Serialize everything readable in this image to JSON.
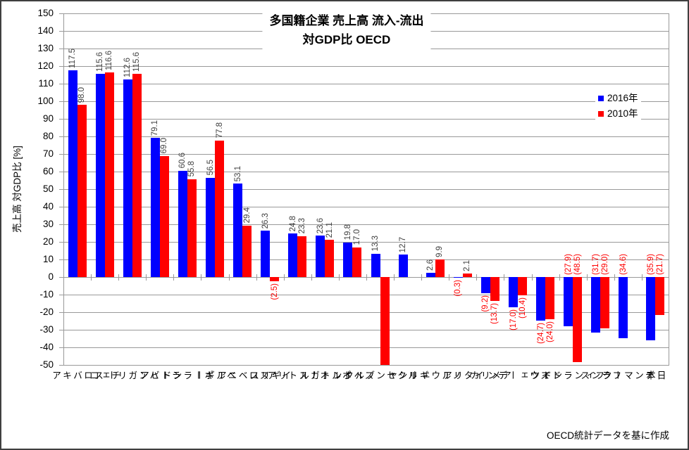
{
  "title": {
    "line1": "多国籍企業 売上高 流入-流出",
    "line2": "対GDP比 OECD"
  },
  "legend": {
    "items": [
      {
        "label": "2016年",
        "color": "#0000ff"
      },
      {
        "label": "2010年",
        "color": "#ff0000"
      }
    ]
  },
  "footer": {
    "source": "OECD統計データを基に作成"
  },
  "chart_data": {
    "type": "bar",
    "title": "多国籍企業 売上高 流入-流出 対GDP比 OECD",
    "xlabel": "",
    "ylabel": "売上高 対GDP比 [%]",
    "ylim": [
      -50,
      150
    ],
    "ytick_step": 10,
    "grid": true,
    "legend_position": "right",
    "categories": [
      "スロバキア",
      "チェコ",
      "ハンガリー",
      "ラトビア",
      "ポーランド",
      "ベルギー",
      "スロベニア",
      "イギリス",
      "オーストリア",
      "ポルトガル",
      "スペイン",
      "ルクセンブルク",
      "ギリシャ",
      "ノルウェー",
      "イタリア",
      "アメリカ",
      "スウェーデン",
      "ドイツ",
      "フィンランド",
      "フランス",
      "デンマーク",
      "日本"
    ],
    "series": [
      {
        "name": "2016年",
        "color": "#0000ff",
        "values": [
          117.5,
          115.6,
          112.6,
          79.1,
          60.6,
          56.5,
          53.1,
          26.3,
          24.8,
          23.6,
          19.8,
          13.3,
          12.7,
          2.6,
          -0.3,
          -9.2,
          -17.0,
          -24.7,
          -27.9,
          -31.7,
          -34.6,
          -35.9
        ]
      },
      {
        "name": "2010年",
        "color": "#ff0000",
        "values": [
          98.0,
          116.6,
          115.6,
          69.0,
          55.8,
          77.8,
          29.4,
          -2.5,
          23.3,
          21.1,
          17.0,
          -50.0,
          null,
          9.9,
          2.1,
          -13.7,
          -10.4,
          -24.0,
          -48.5,
          -29.0,
          null,
          -21.7
        ]
      }
    ],
    "label_rules": {
      "negative_format": "(abs)",
      "positive_color": "#404040",
      "negative_color": "#ff0000",
      "no_label": [
        [
          1,
          11
        ]
      ],
      "label_at_axis_base": [
        18,
        19,
        20,
        21
      ]
    }
  }
}
